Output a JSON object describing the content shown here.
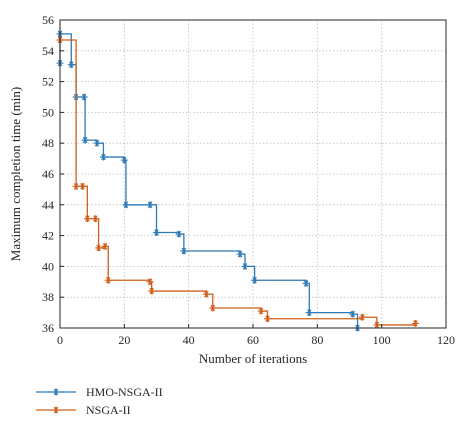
{
  "chart_data": {
    "type": "line",
    "xlabel": "Number of iterations",
    "ylabel": "Maximum completion time (min)",
    "xlim": [
      0,
      120
    ],
    "ylim": [
      36,
      56
    ],
    "xticks": [
      0,
      20,
      40,
      60,
      80,
      100,
      120
    ],
    "yticks": [
      36,
      38,
      40,
      42,
      44,
      46,
      48,
      50,
      52,
      54,
      56
    ],
    "grid": true,
    "legend_position": "bottom-left",
    "series": [
      {
        "name": "HMO-NSGA-II",
        "color": "#2e7ab6",
        "marker": "asterisk",
        "step": "post",
        "points": [
          [
            0,
            53.2
          ],
          [
            0,
            55.1
          ],
          [
            3.5,
            53.1
          ],
          [
            5,
            51
          ],
          [
            7.5,
            51
          ],
          [
            7.8,
            48.2
          ],
          [
            11.5,
            48
          ],
          [
            13.5,
            47.1
          ],
          [
            20,
            46.9
          ],
          [
            20.5,
            44
          ],
          [
            28,
            44
          ],
          [
            30,
            42.2
          ],
          [
            37,
            42.1
          ],
          [
            38.5,
            41
          ],
          [
            56,
            40.8
          ],
          [
            57.5,
            40
          ],
          [
            60.5,
            39.1
          ],
          [
            76.5,
            38.9
          ],
          [
            77.5,
            37
          ],
          [
            91,
            36.9
          ],
          [
            92.5,
            36
          ]
        ]
      },
      {
        "name": "NSGA-II",
        "color": "#d0601d",
        "marker": "asterisk",
        "step": "post",
        "points": [
          [
            0,
            54.7
          ],
          [
            5,
            45.2
          ],
          [
            7,
            45.2
          ],
          [
            8.5,
            43.1
          ],
          [
            11,
            43.1
          ],
          [
            12,
            41.2
          ],
          [
            14,
            41.3
          ],
          [
            15,
            39.1
          ],
          [
            28,
            39
          ],
          [
            28.5,
            38.4
          ],
          [
            45.5,
            38.2
          ],
          [
            47.5,
            37.3
          ],
          [
            62.5,
            37.1
          ],
          [
            64.5,
            36.6
          ],
          [
            94,
            36.7
          ],
          [
            98.5,
            36.2
          ],
          [
            110.5,
            36.3
          ]
        ]
      }
    ]
  }
}
